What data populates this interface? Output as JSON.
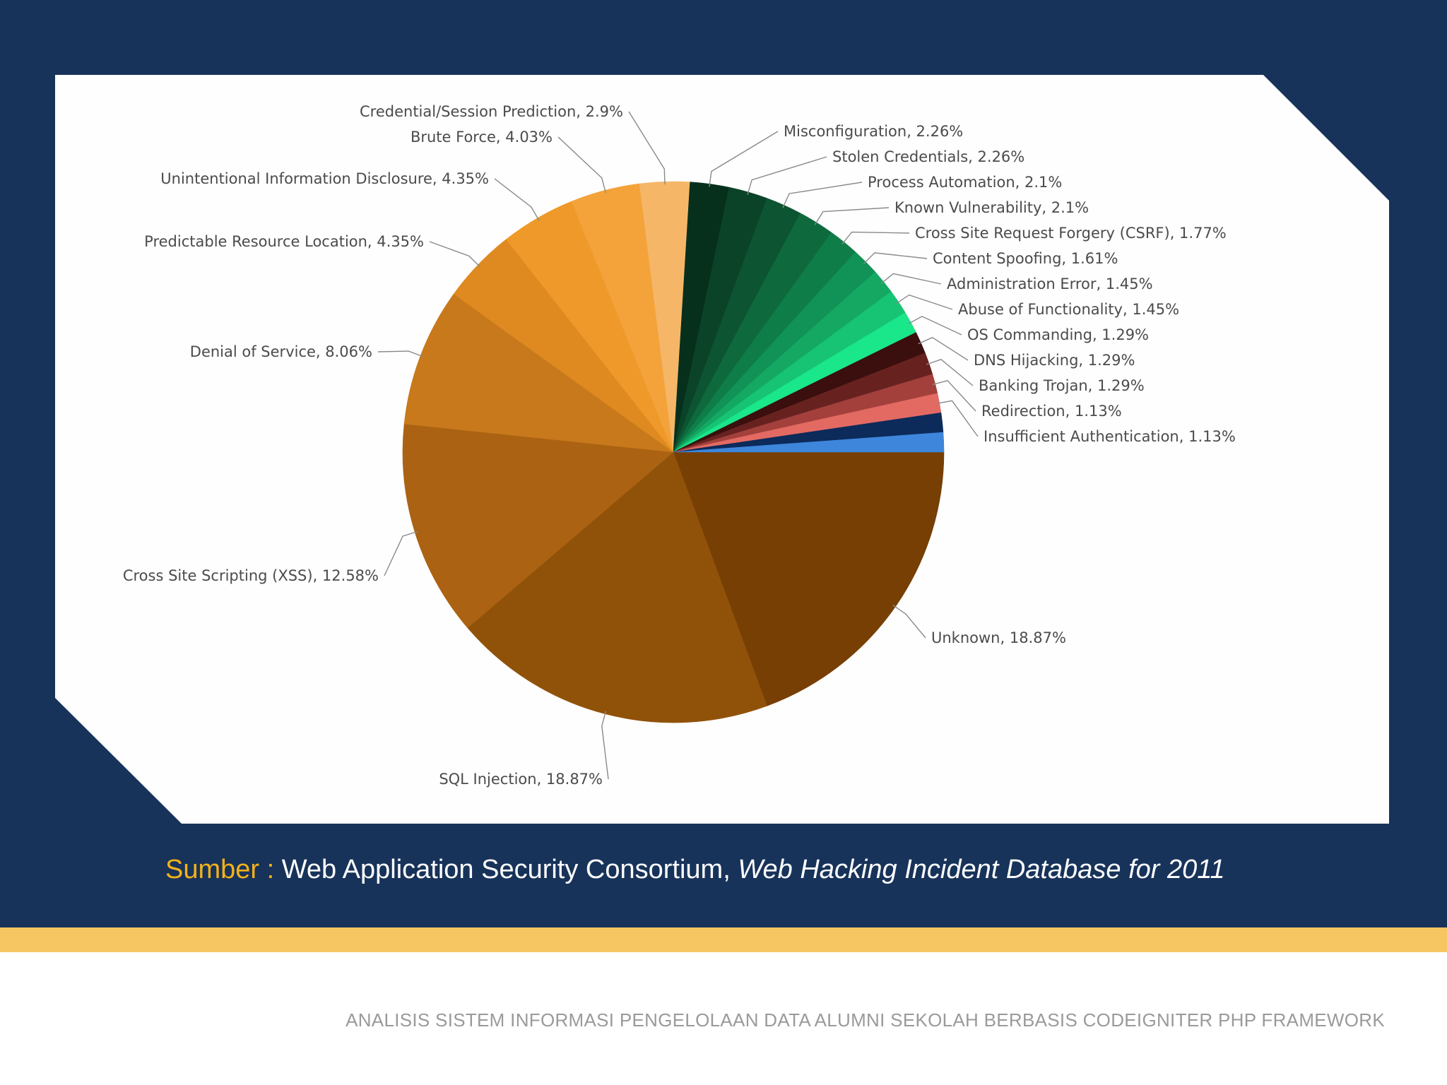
{
  "chart_data": {
    "type": "pie",
    "title": "",
    "start_angle_deg": 0,
    "direction": "clockwise",
    "slices": [
      {
        "label": "Unknown",
        "value": 18.87,
        "display": "Unknown, 18.87%",
        "color": "#773f03"
      },
      {
        "label": "SQL Injection",
        "value": 18.87,
        "display": "SQL Injection, 18.87%",
        "color": "#905209"
      },
      {
        "label": "Cross Site Scripting (XSS)",
        "value": 12.58,
        "display": "Cross Site Scripting (XSS), 12.58%",
        "color": "#ab6212"
      },
      {
        "label": "Denial of Service",
        "value": 8.06,
        "display": "Denial of Service, 8.06%",
        "color": "#c7791c"
      },
      {
        "label": "Predictable Resource Location",
        "value": 4.35,
        "display": "Predictable Resource Location, 4.35%",
        "color": "#df8a20"
      },
      {
        "label": "Unintentional Information Disclosure",
        "value": 4.35,
        "display": "Unintentional Information Disclosure, 4.35%",
        "color": "#ee9929"
      },
      {
        "label": "Brute Force",
        "value": 4.03,
        "display": "Brute Force, 4.03%",
        "color": "#f3a33a"
      },
      {
        "label": "Credential/Session Prediction",
        "value": 2.9,
        "display": "Credential/Session Prediction, 2.9%",
        "color": "#f6b668"
      },
      {
        "label": "Misconfiguration",
        "value": 2.26,
        "display": "Misconfiguration, 2.26%",
        "color": "#06301c"
      },
      {
        "label": "Stolen Credentials",
        "value": 2.26,
        "display": "Stolen Credentials, 2.26%",
        "color": "#0b4328"
      },
      {
        "label": "Process Automation",
        "value": 2.1,
        "display": "Process Automation, 2.1%",
        "color": "#0d5532"
      },
      {
        "label": "Known Vulnerability",
        "value": 2.1,
        "display": "Known Vulnerability, 2.1%",
        "color": "#0e6a3d"
      },
      {
        "label": "Cross Site Request Forgery (CSRF)",
        "value": 1.77,
        "display": "Cross Site Request Forgery (CSRF), 1.77%",
        "color": "#0f7d48"
      },
      {
        "label": "Content Spoofing",
        "value": 1.61,
        "display": "Content Spoofing, 1.61%",
        "color": "#119256"
      },
      {
        "label": "Administration Error",
        "value": 1.45,
        "display": "Administration Error, 1.45%",
        "color": "#14a863"
      },
      {
        "label": "Abuse of Functionality",
        "value": 1.45,
        "display": "Abuse of Functionality, 1.45%",
        "color": "#16c474"
      },
      {
        "label": "OS Commanding",
        "value": 1.29,
        "display": "OS Commanding, 1.29%",
        "color": "#1ae68a"
      },
      {
        "label": "DNS Hijacking",
        "value": 1.29,
        "display": "DNS Hijacking, 1.29%",
        "color": "#3a0f0d"
      },
      {
        "label": "Banking Trojan",
        "value": 1.29,
        "display": "Banking Trojan, 1.29%",
        "color": "#672220"
      },
      {
        "label": "Redirection",
        "value": 1.13,
        "display": "Redirection, 1.13%",
        "color": "#a3403b"
      },
      {
        "label": "Insufficient Authentication",
        "value": 1.13,
        "display": "Insufficient Authentication, 1.13%",
        "color": "#e36a62"
      }
    ],
    "unlabeled_slices": [
      {
        "value": 1.13,
        "color": "#0c2a5a"
      },
      {
        "value": 1.13,
        "color": "#3d86db"
      }
    ]
  },
  "source": {
    "prefix": "Sumber :",
    "publisher": "Web Application Security Consortium,",
    "publication": "Web Hacking Incident Database for 2011"
  },
  "footer": {
    "text": "ANALISIS SISTEM INFORMASI PENGELOLAAN DATA ALUMNI SEKOLAH BERBASIS CODEIGNITER PHP FRAMEWORK"
  },
  "theme": {
    "navy": "#18335a",
    "gold": "#f5c661",
    "source_prefix_color": "#f2b21a"
  }
}
